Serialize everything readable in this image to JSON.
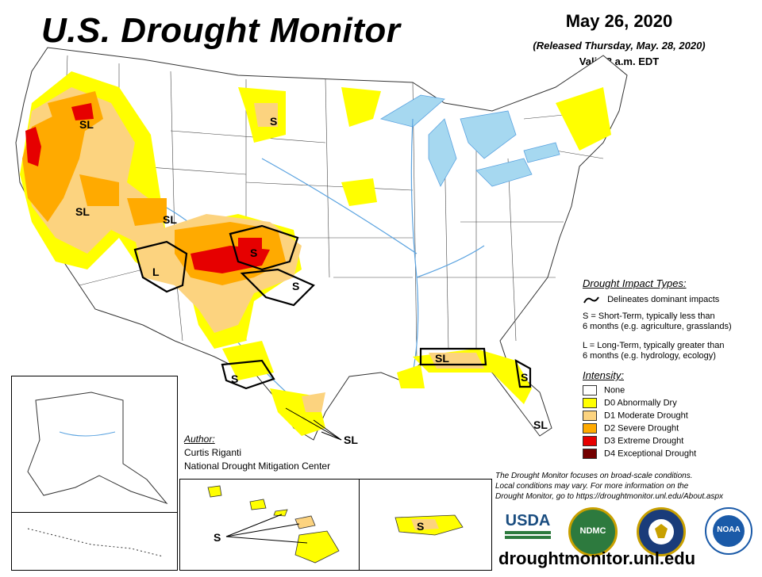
{
  "header": {
    "title": "U.S. Drought Monitor",
    "date": "May 26, 2020",
    "released": "(Released Thursday, May. 28, 2020)",
    "valid": "Valid 8 a.m. EDT"
  },
  "impact_types": {
    "heading": "Drought Impact Types:",
    "delineates": "Delineates dominant impacts",
    "s_line1": "S = Short-Term, typically less than",
    "s_line2": "6 months (e.g. agriculture, grasslands)",
    "l_line1": "L = Long-Term, typically greater than",
    "l_line2": "6 months (e.g. hydrology, ecology)"
  },
  "intensity": {
    "heading": "Intensity:",
    "items": [
      {
        "label": "None",
        "color": "#ffffff"
      },
      {
        "label": "D0 Abnormally Dry",
        "color": "#ffff00"
      },
      {
        "label": "D1 Moderate Drought",
        "color": "#fcd37f"
      },
      {
        "label": "D2 Severe Drought",
        "color": "#ffaa00"
      },
      {
        "label": "D3 Extreme Drought",
        "color": "#e60000"
      },
      {
        "label": "D4 Exceptional Drought",
        "color": "#730000"
      }
    ]
  },
  "author": {
    "heading": "Author:",
    "name": "Curtis Riganti",
    "org": "National Drought Mitigation Center"
  },
  "note": {
    "line1": "The Drought Monitor focuses on broad-scale conditions.",
    "line2": "Local conditions may vary. For more information on the",
    "line3": "Drought Monitor, go to https://droughtmonitor.unl.edu/About.aspx"
  },
  "map_labels": {
    "sl": "SL",
    "s": "S",
    "l": "L"
  },
  "logos": {
    "usda": "USDA",
    "ndmc": "NDMC",
    "noaa": "NOAA"
  },
  "url": "droughtmonitor.unl.edu",
  "colors": {
    "water": "#a6d8f0",
    "river": "#5ba3e0"
  }
}
